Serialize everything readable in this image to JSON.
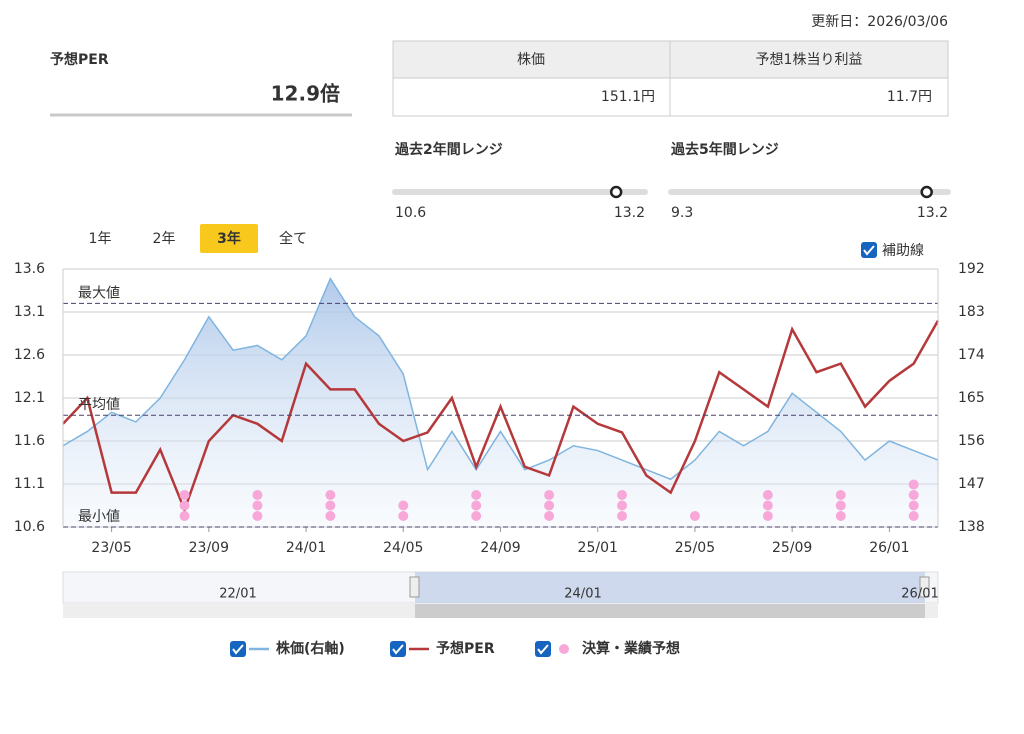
{
  "header": {
    "updated": "更新日：2026/03/06",
    "per_title": "予想PER",
    "per": {
      "value": 12.9,
      "label": "12.9倍"
    }
  },
  "table": {
    "headers": [
      "株価",
      "予想1株当り利益"
    ],
    "values": [
      "151.1円",
      "11.7円"
    ]
  },
  "ranges": [
    {
      "title": "過去2年間レンジ",
      "min": 10.6,
      "max": 13.2
    },
    {
      "title": "過去5年間レンジ",
      "min": 9.3,
      "max": 13.2
    }
  ],
  "periods": {
    "options": [
      "1年",
      "2年",
      "3年",
      "全て"
    ],
    "selected": 2
  },
  "aux_toggle": "補助線",
  "navigator": {
    "labels": [
      "22/01",
      "24/01",
      "26/01"
    ]
  },
  "chart_data": {
    "type": "line",
    "categories": [
      null,
      null,
      "23/05",
      null,
      null,
      null,
      "23/09",
      null,
      null,
      null,
      "24/01",
      null,
      null,
      null,
      "24/05",
      null,
      null,
      null,
      "24/09",
      null,
      null,
      null,
      "25/01",
      null,
      null,
      null,
      "25/05",
      null,
      null,
      null,
      "25/09",
      null,
      null,
      null,
      "26/01",
      null,
      null
    ],
    "ylim": [
      10.6,
      13.6
    ],
    "yticks": [
      10.6,
      11.1,
      11.6,
      12.1,
      12.6,
      13.1,
      13.6
    ],
    "y2lim": [
      138,
      192
    ],
    "y2ticks": [
      138,
      147,
      156,
      165,
      174,
      183,
      192
    ],
    "grid": true,
    "ref_lines": [
      {
        "label": "最大値",
        "value": 13.2
      },
      {
        "label": "平均値",
        "value": 11.9
      },
      {
        "label": "最小値",
        "value": 10.6
      }
    ],
    "series": [
      {
        "name": "株価(右軸)",
        "color": "#7fb5e0",
        "axis": "y2",
        "type": "area",
        "values": [
          155,
          158,
          162,
          160,
          165,
          173,
          182,
          175,
          176,
          173,
          178,
          190,
          182,
          178,
          170,
          150,
          158,
          150,
          158,
          150,
          152,
          155,
          154,
          152,
          150,
          148,
          152,
          158,
          155,
          158,
          166,
          162,
          158,
          152,
          156,
          154,
          152
        ]
      },
      {
        "name": "予想PER",
        "color": "#b5383a",
        "type": "line",
        "values": [
          11.8,
          12.1,
          11.0,
          11.0,
          11.5,
          10.8,
          11.6,
          11.9,
          11.8,
          11.6,
          12.5,
          12.2,
          12.2,
          11.8,
          11.6,
          11.7,
          12.1,
          11.3,
          12.0,
          11.3,
          11.2,
          12.0,
          11.8,
          11.7,
          11.2,
          11.0,
          11.6,
          12.4,
          12.2,
          12.0,
          12.9,
          12.4,
          12.5,
          12.0,
          12.3,
          12.5,
          13.0
        ]
      },
      {
        "name": "決算・業績予想",
        "color": "#f7a8d8",
        "type": "dots",
        "values": [
          null,
          null,
          null,
          null,
          null,
          3,
          null,
          null,
          3,
          null,
          null,
          3,
          null,
          null,
          2,
          null,
          null,
          3,
          null,
          null,
          3,
          null,
          null,
          3,
          null,
          null,
          1,
          null,
          null,
          3,
          null,
          null,
          3,
          null,
          null,
          4,
          null
        ]
      }
    ]
  }
}
